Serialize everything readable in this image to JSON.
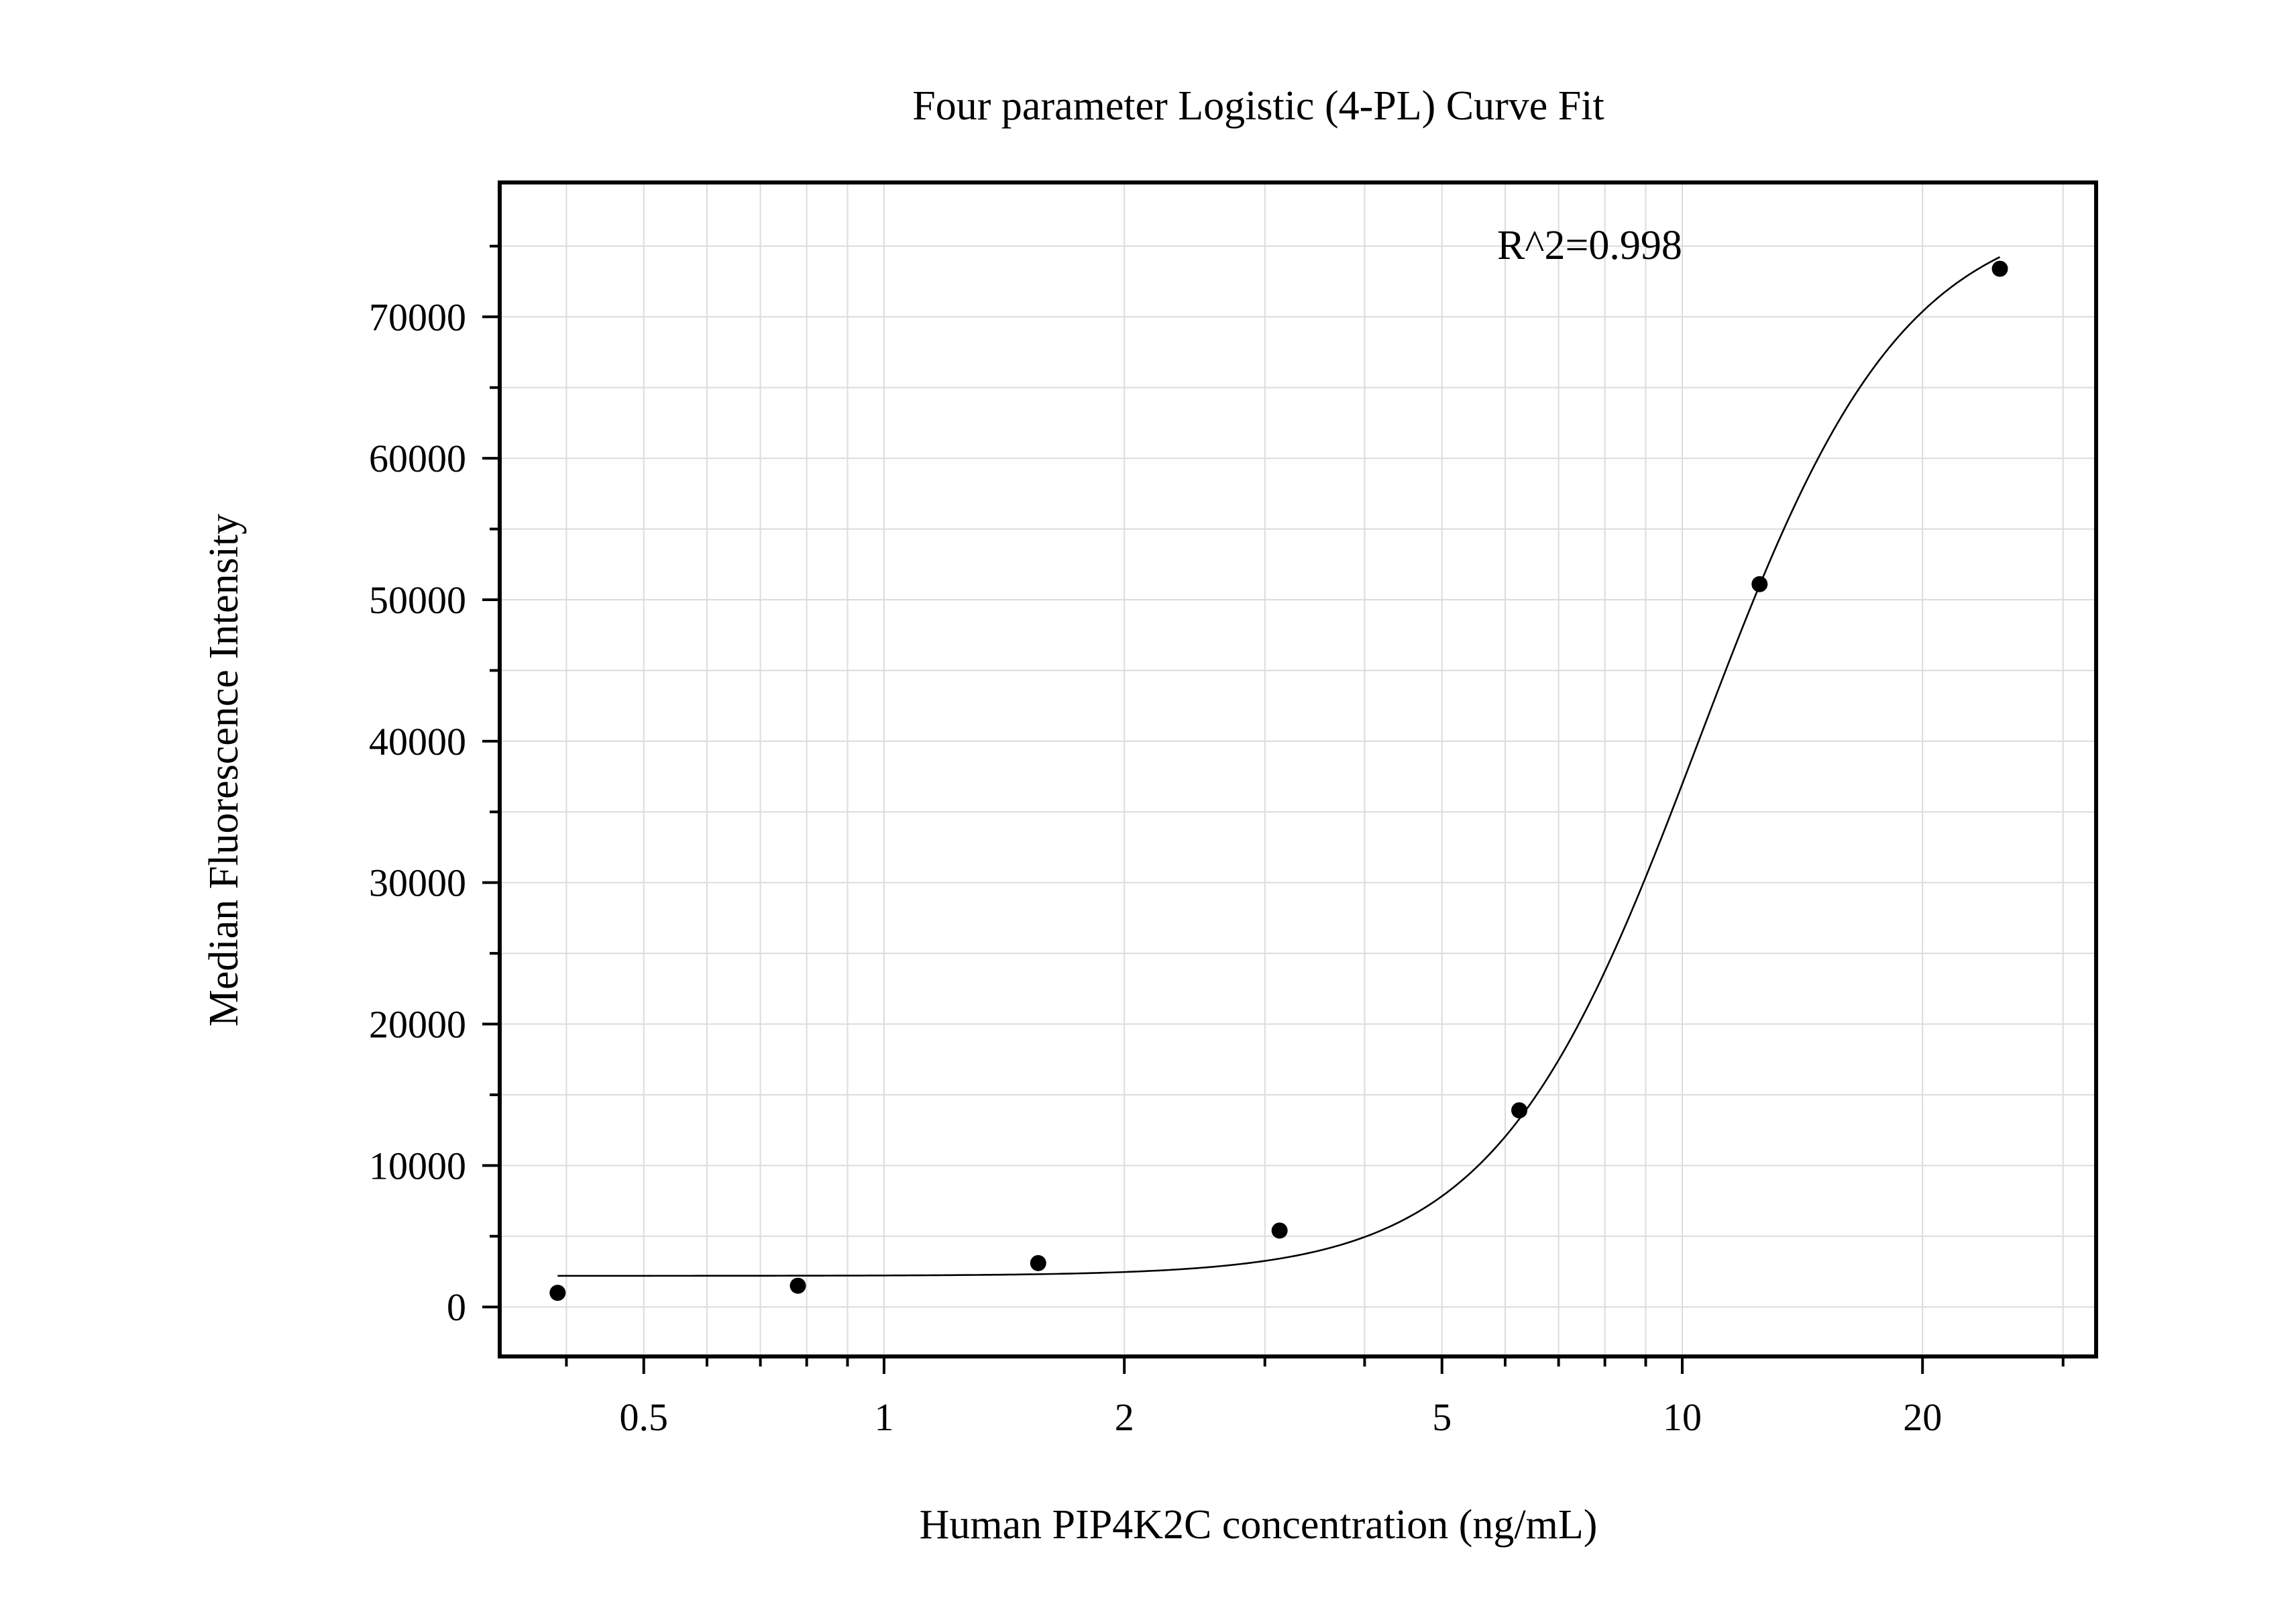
{
  "chart_data": {
    "type": "scatter",
    "title": "Four parameter Logistic (4-PL) Curve Fit",
    "xlabel": "Human PIP4K2C concentration (ng/mL)",
    "ylabel": "Median Fluorescence Intensity",
    "x_scale": "log",
    "xlim": [
      0.33,
      33
    ],
    "ylim": [
      -3500,
      79500
    ],
    "x_ticks": [
      0.5,
      1,
      2,
      5,
      10,
      20
    ],
    "x_tick_labels": [
      "0.5",
      "1",
      "2",
      "5",
      "10",
      "20"
    ],
    "y_ticks": [
      0,
      10000,
      20000,
      30000,
      40000,
      50000,
      60000,
      70000
    ],
    "y_tick_labels": [
      "0",
      "10000",
      "20000",
      "30000",
      "40000",
      "50000",
      "60000",
      "70000"
    ],
    "grid": true,
    "annotation": "R^2=0.998",
    "series": [
      {
        "points": [
          {
            "x": 0.39,
            "y": 1000
          },
          {
            "x": 0.78,
            "y": 1500
          },
          {
            "x": 1.56,
            "y": 3100
          },
          {
            "x": 3.13,
            "y": 5400
          },
          {
            "x": 6.25,
            "y": 13900
          },
          {
            "x": 12.5,
            "y": 51100
          },
          {
            "x": 25,
            "y": 73400
          }
        ]
      }
    ],
    "fit": {
      "model": "4PL",
      "bottom": 2200,
      "top": 78000,
      "ec50": 10.5,
      "hill": 3.4,
      "x_range": [
        0.39,
        25
      ]
    }
  }
}
